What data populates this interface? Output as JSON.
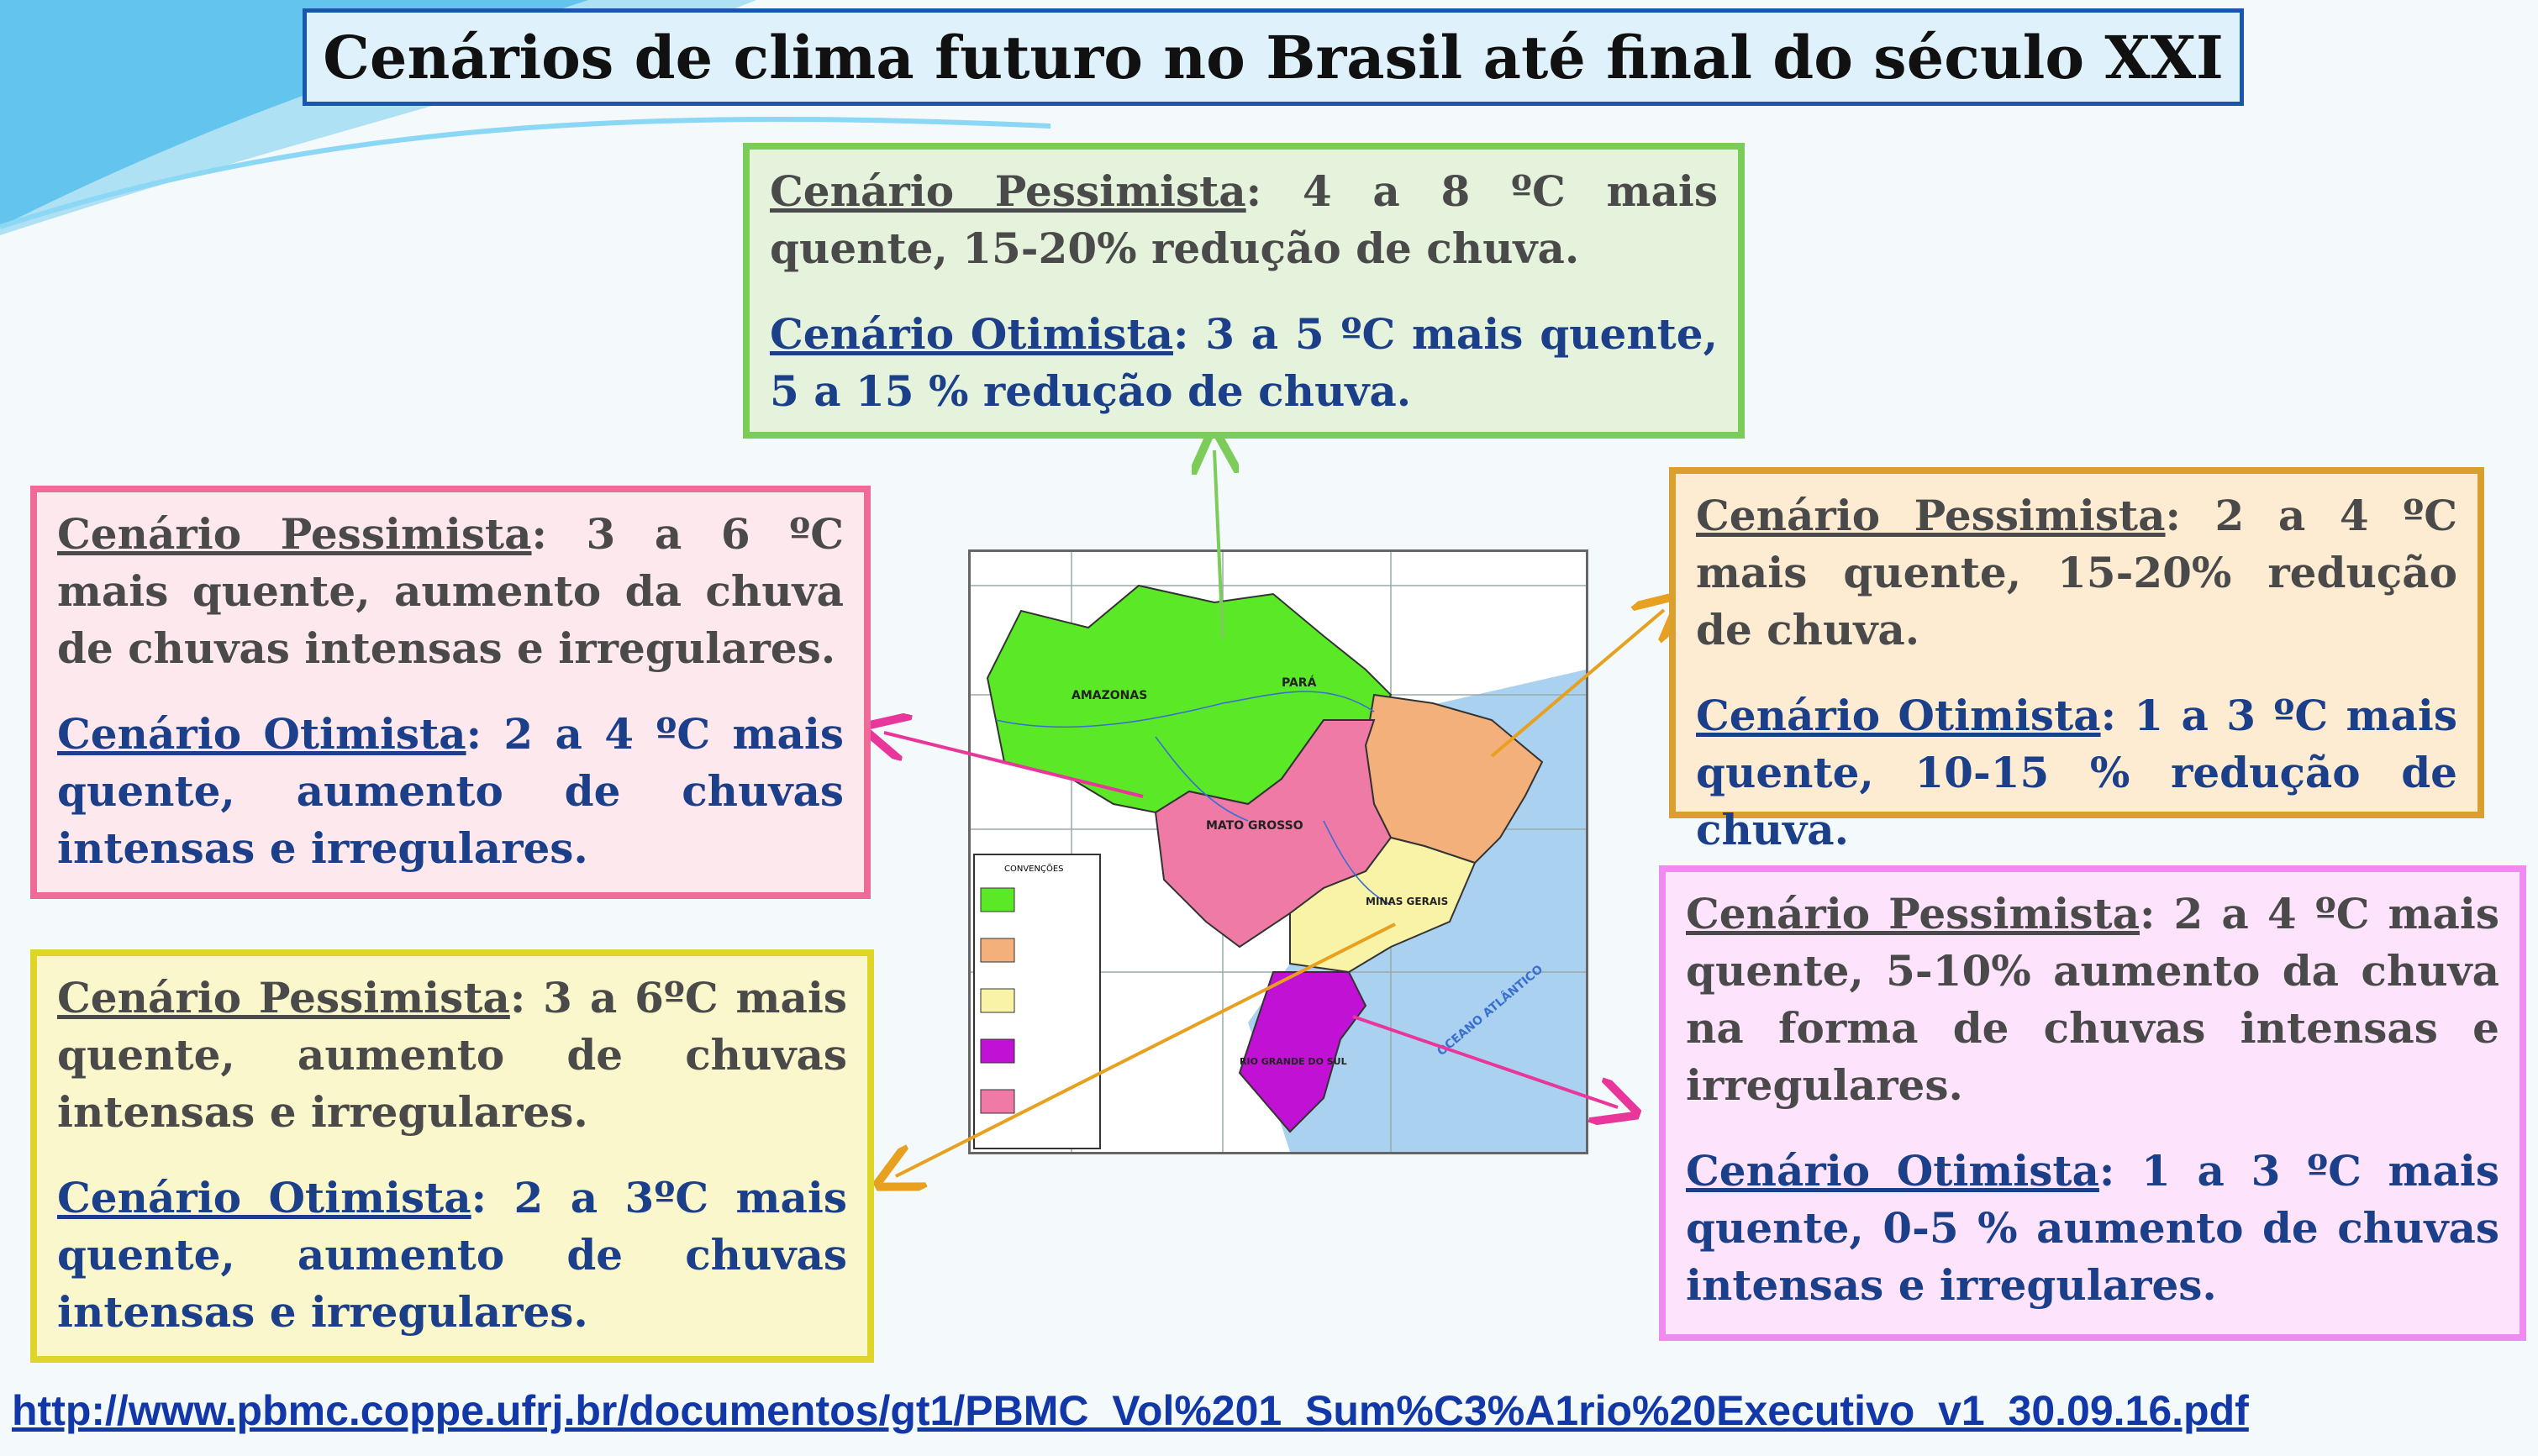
{
  "title": "Cenários de clima futuro no Brasil até final do século XXI",
  "regions": {
    "north": {
      "pess_label": "Cenário Pessimista",
      "pess_text": ": 4 a 8 ºC mais quente, 15-20% redução de chuva.",
      "otim_label": "Cenário Otimista",
      "otim_text": ": 3 a 5 ºC mais quente, 5 a 15 % redução de chuva."
    },
    "west": {
      "pess_label": "Cenário Pessimista",
      "pess_text": ": 3 a 6 ºC mais quente, aumento da chuva de chuvas intensas e irregulares.",
      "otim_label": "Cenário Otimista",
      "otim_text": ": 2 a 4 ºC mais quente, aumento de chuvas intensas e irregulares."
    },
    "northeast": {
      "pess_label": "Cenário Pessimista",
      "pess_text": ": 2 a 4 ºC mais quente, 15-20% redução de chuva.",
      "otim_label": "Cenário Otimista",
      "otim_text": ": 1 a 3 ºC mais quente, 10-15 % redução de chuva."
    },
    "southeast": {
      "pess_label": "Cenário Pessimista",
      "pess_text": ": 3 a 6ºC mais quente, aumento de chuvas intensas e irregulares.",
      "otim_label": "Cenário Otimista",
      "otim_text": ": 2 a 3ºC mais quente, aumento de chuvas intensas e irregulares."
    },
    "south": {
      "pess_label": "Cenário Pessimista",
      "pess_text": ": 2 a 4 ºC mais quente, 5-10% aumento da chuva na forma de chuvas intensas e irregulares.",
      "otim_label": "Cenário Otimista",
      "otim_text": ": 1 a 3 ºC mais quente, 0-5 % aumento de chuvas intensas e irregulares."
    }
  },
  "map_labels": {
    "amazonas": "AMAZONAS",
    "para": "PARÁ",
    "mato_grosso": "MATO GROSSO",
    "minas": "MINAS GERAIS",
    "rio_grande": "RIO GRANDE DO SUL",
    "ocean": "OCEANO ATLÂNTICO",
    "legend_title": "CONVENÇÕES"
  },
  "colors": {
    "north": "#5be827",
    "northeast": "#f3b07a",
    "southeast": "#f8f3a6",
    "south": "#c011d4",
    "centerwest": "#ef7aa6",
    "ocean": "#aad1ef"
  },
  "source_url": "http://www.pbmc.coppe.ufrj.br/documentos/gt1/PBMC_Vol%201_Sum%C3%A1rio%20Executivo_v1_30.09.16.pdf"
}
